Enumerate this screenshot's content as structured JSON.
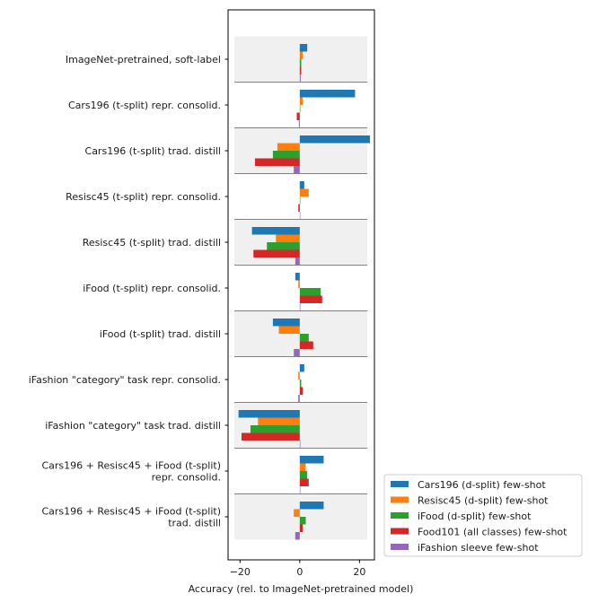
{
  "chart_data": {
    "type": "bar",
    "orientation": "horizontal",
    "xlabel": "Accuracy (rel. to ImageNet-pretrained model)",
    "ylabel": "",
    "xlim": [
      -24,
      25
    ],
    "xticks": [
      -20,
      0,
      20
    ],
    "xtick_labels": [
      "−20",
      "0",
      "20"
    ],
    "grid": false,
    "legend_position": "bottom-right (outside plot)",
    "categories": [
      [
        "ImageNet-pretrained, soft-label"
      ],
      [
        "Cars196 (t-split) repr. consolid."
      ],
      [
        "Cars196 (t-split) trad. distill"
      ],
      [
        "Resisc45 (t-split) repr. consolid."
      ],
      [
        "Resisc45 (t-split) trad. distill"
      ],
      [
        "iFood (t-split) repr. consolid."
      ],
      [
        "iFood (t-split) trad. distill"
      ],
      [
        "iFashion \"category\" task repr. consolid."
      ],
      [
        "iFashion \"category\" task trad. distill"
      ],
      [
        "Cars196 + Resisc45 + iFood (t-split)",
        "repr. consolid."
      ],
      [
        "Cars196 + Resisc45 + iFood (t-split)",
        "trad. distill"
      ]
    ],
    "shaded_groups": [
      0,
      2,
      4,
      6,
      8,
      10
    ],
    "series": [
      {
        "name": "Cars196 (d-split) few-shot",
        "color": "#1f77b4",
        "values": [
          2.5,
          18.5,
          23.5,
          1.5,
          -16,
          -1.5,
          -9,
          1.5,
          -20.5,
          8,
          8
        ]
      },
      {
        "name": "Resisc45 (d-split) few-shot",
        "color": "#ff7f0e",
        "values": [
          1,
          1,
          -7.5,
          3,
          -8,
          -0.5,
          -7,
          -0.5,
          -14,
          2,
          -2
        ]
      },
      {
        "name": "iFood (d-split) few-shot",
        "color": "#2ca02c",
        "values": [
          0.5,
          0,
          -9,
          0,
          -11,
          7,
          3,
          0.5,
          -16.5,
          2.5,
          2
        ]
      },
      {
        "name": "Food101 (all classes) few-shot",
        "color": "#d62728",
        "values": [
          0.5,
          -1,
          -15,
          -0.5,
          -15.5,
          7.5,
          4.5,
          1,
          -19.5,
          3,
          1
        ]
      },
      {
        "name": "iFashion sleeve few-shot",
        "color": "#9467bd",
        "values": [
          0.3,
          -0.3,
          -2,
          0,
          -1.5,
          0,
          -2,
          -0.5,
          0,
          0,
          -1.5
        ]
      }
    ]
  }
}
